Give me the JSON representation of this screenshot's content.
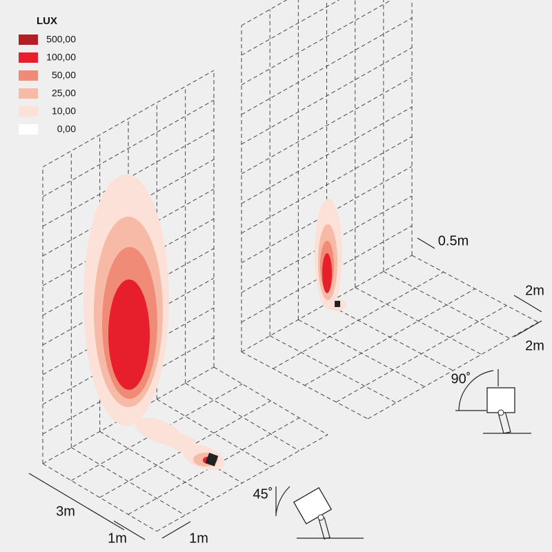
{
  "legend": {
    "title": "LUX",
    "levels": [
      {
        "label": "500,00",
        "color": "#b21f24"
      },
      {
        "label": "100,00",
        "color": "#e71f2d"
      },
      {
        "label": "50,00",
        "color": "#ef8b77"
      },
      {
        "label": "25,00",
        "color": "#f6baa7"
      },
      {
        "label": "10,00",
        "color": "#fbe1d7"
      },
      {
        "label": "0,00",
        "color": "#ffffff"
      }
    ]
  },
  "dimensions": {
    "left": {
      "width": "3m",
      "depth": "1m",
      "spacing": "1m"
    },
    "right": {
      "offset": "0.5m",
      "spacing": "2m",
      "depth": "2m"
    }
  },
  "angles": {
    "left": "45˚",
    "right": "90˚"
  }
}
